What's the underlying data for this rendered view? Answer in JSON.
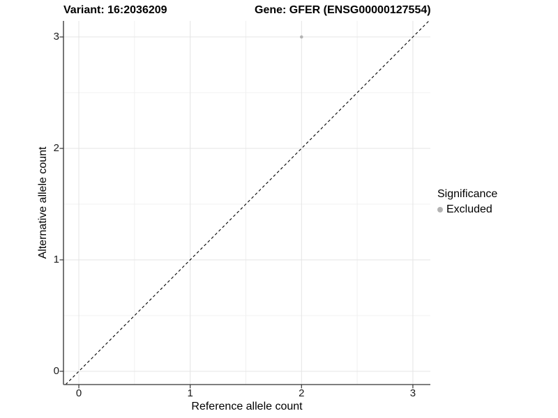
{
  "header": {
    "variant_title": "Variant: 16:2036209",
    "gene_title": "Gene: GFER (ENSG00000127554)"
  },
  "chart_data": {
    "type": "scatter",
    "title": "Variant: 16:2036209    Gene: GFER (ENSG00000127554)",
    "xlabel": "Reference allele count",
    "ylabel": "Alternative allele count",
    "xlim": [
      -0.138,
      3.157
    ],
    "ylim": [
      -0.119,
      3.144
    ],
    "x_ticks": [
      0,
      1,
      2,
      3
    ],
    "y_ticks": [
      0,
      1,
      2,
      3
    ],
    "x_minor_ticks": [
      0.5,
      1.5,
      2.5
    ],
    "y_minor_ticks": [
      0.5,
      1.5,
      2.5
    ],
    "grid": true,
    "grid_major_color": "#e4e4e4",
    "grid_minor_color": "#f0f0f0",
    "axis_line_color": "#555555",
    "tick_mark_color": "#333333",
    "points": [
      {
        "x": 2,
        "y": 3,
        "series": "Excluded"
      }
    ],
    "reference_line": {
      "type": "identity",
      "style": "dashed",
      "color": "#000000"
    },
    "legend": {
      "title": "Significance",
      "position": "right",
      "items": [
        {
          "label": "Excluded",
          "color": "#b3b3b3"
        }
      ]
    }
  }
}
